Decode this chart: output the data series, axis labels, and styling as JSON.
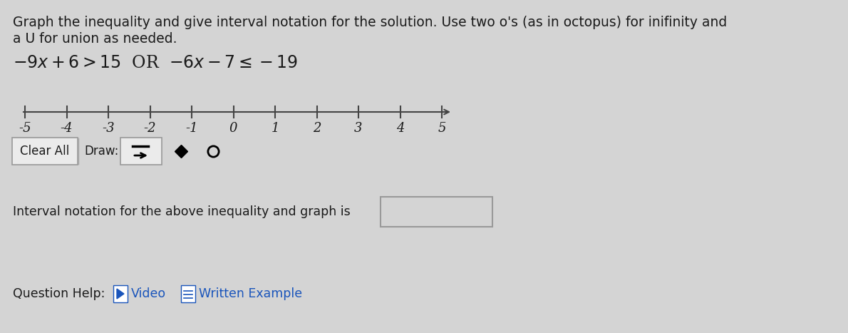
{
  "bg_color": "#d4d4d4",
  "title_line1": "Graph the inequality and give interval notation for the solution. Use two o's (as in octopus) for inifinity and",
  "title_line2": "a U for union as needed.",
  "ineq_left": "-9x + 6 > 15 OR",
  "ineq_right": "-6x - 7 ≤ -19",
  "number_line_min": -5,
  "number_line_max": 5,
  "number_line_ticks": [
    -5,
    -4,
    -3,
    -2,
    -1,
    0,
    1,
    2,
    3,
    4,
    5
  ],
  "interval_label": "Interval notation for the above inequality and graph is",
  "question_help_text": "Question Help:",
  "video_text": "Video",
  "example_text": "Written Example",
  "clear_all_text": "Clear All",
  "draw_text": "Draw:",
  "text_color": "#1a1a1a",
  "number_line_color": "#444444",
  "blue_color": "#1a55bb"
}
